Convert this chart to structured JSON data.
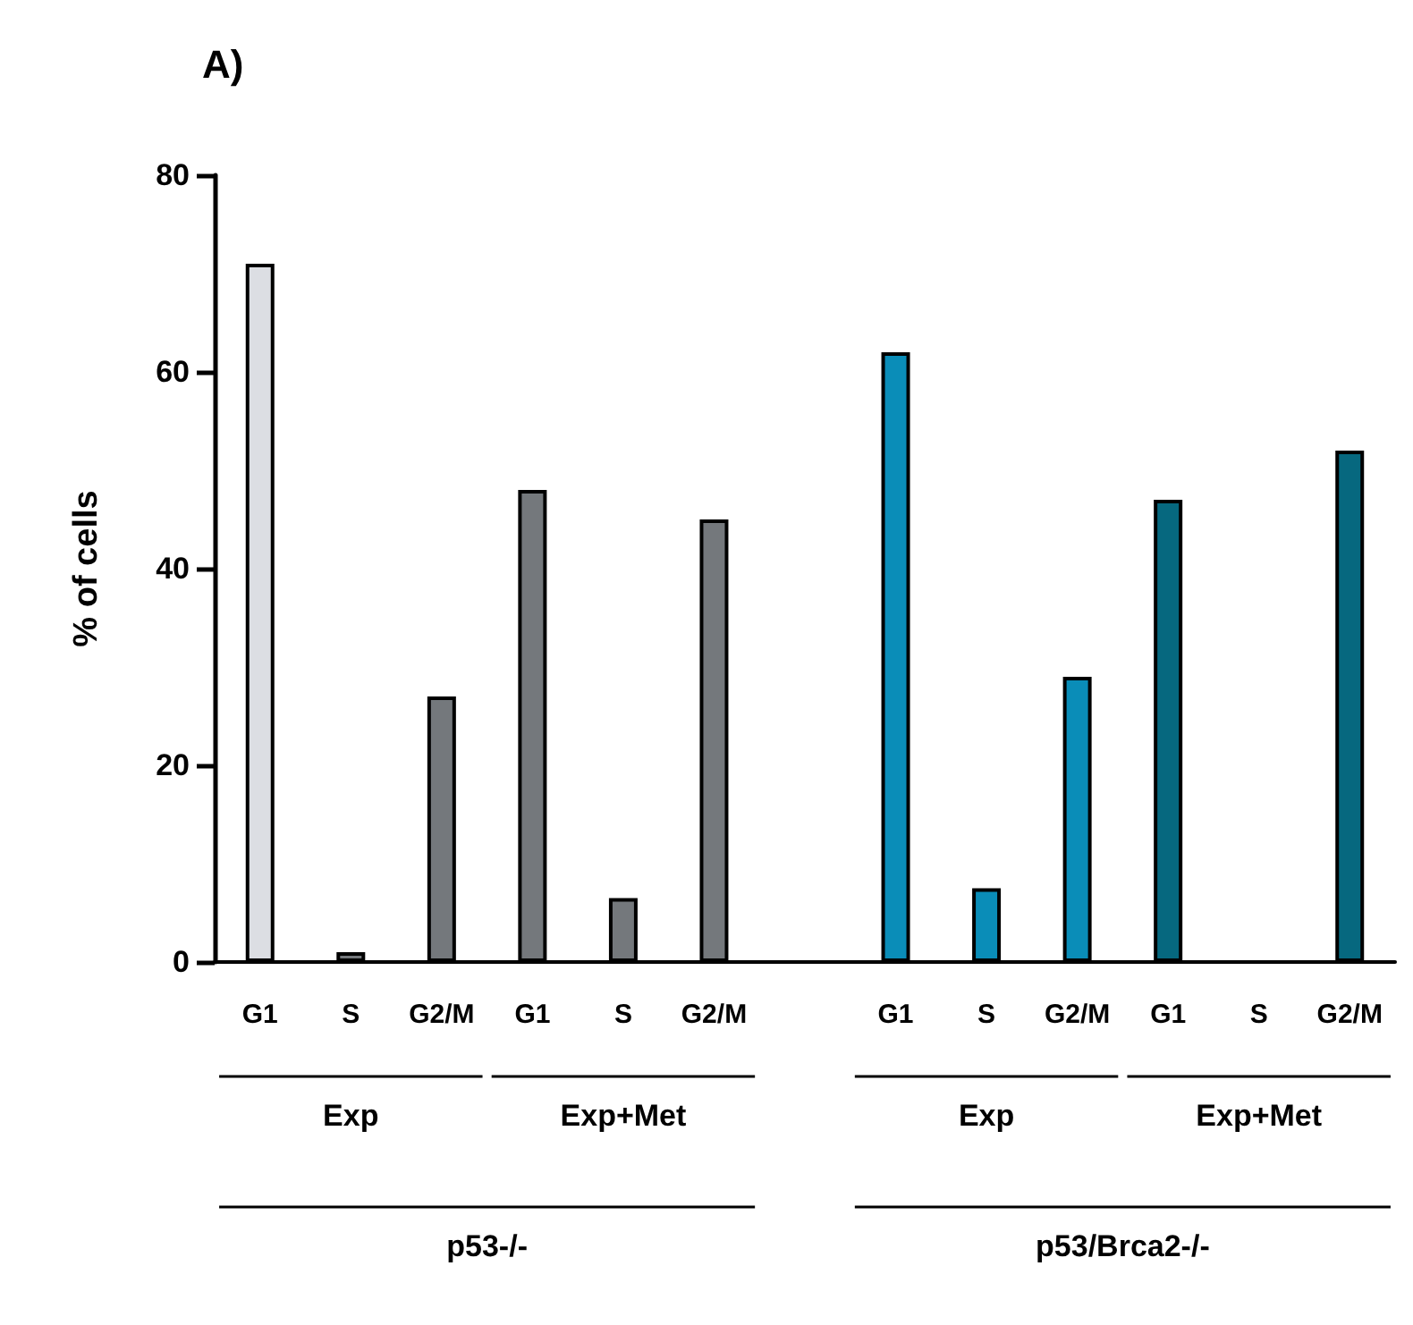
{
  "chart_data": {
    "type": "bar",
    "title": "A)",
    "ylabel": "% of cells",
    "categories": [
      "G1",
      "S",
      "G2/M",
      "G1",
      "S",
      "G2/M",
      null,
      "G1",
      "S",
      "G2/M",
      "G1",
      "S",
      "G2/M"
    ],
    "values": [
      71,
      1,
      27,
      48,
      6.5,
      45,
      null,
      62,
      7.5,
      29,
      47,
      null,
      52
    ],
    "colors": [
      "#dcdee3",
      "#74787c",
      "#74787c",
      "#74787c",
      "#74787c",
      "#74787c",
      null,
      "#0a8db8",
      "#0a8db8",
      "#0a8db8",
      "#06687f",
      null,
      "#06687f"
    ],
    "ylim": [
      0,
      80
    ],
    "yticks": [
      0,
      20,
      40,
      60,
      80
    ],
    "grid": false,
    "annotations": [
      "Exp",
      "Exp+Met",
      "Exp",
      "Exp+Met",
      "p53-/-",
      "p53/Brca2-/-"
    ]
  }
}
